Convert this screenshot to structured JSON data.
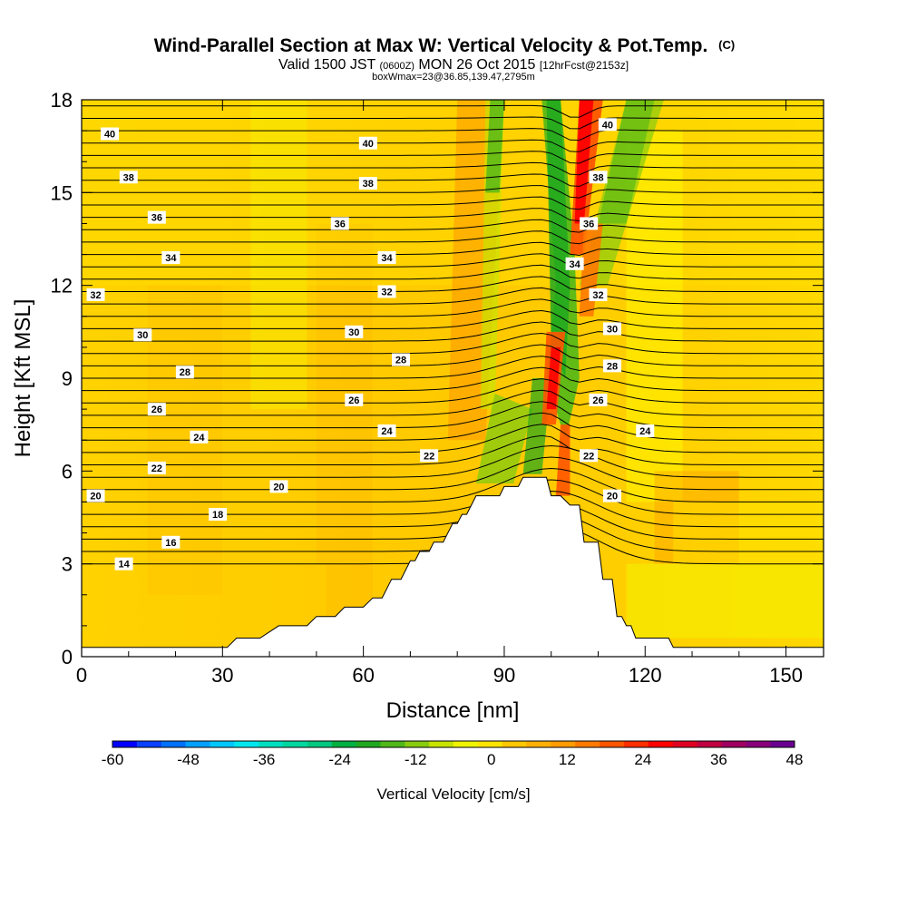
{
  "chart_data": {
    "type": "heatmap",
    "title": "Wind-Parallel Section at Max W: Vertical Velocity & Pot.Temp.",
    "title_mark": "(C)",
    "subtitle_parts": [
      "Valid 1500 JST ",
      "(0600Z)",
      " MON 26 Oct 2015 ",
      "[12hrFcst@2153z]"
    ],
    "subtitle2": "boxWmax=23@36.85,139.47,2795m",
    "xlabel": "Distance [nm]",
    "ylabel": "Height [Kft MSL]",
    "xlim": [
      0,
      158
    ],
    "ylim": [
      0,
      18
    ],
    "x_ticks": [
      0,
      30,
      60,
      90,
      120,
      150
    ],
    "x_tick_labels": [
      "0",
      "30",
      "60",
      "90",
      "120",
      "150"
    ],
    "y_ticks": [
      0,
      3,
      6,
      9,
      12,
      15,
      18
    ],
    "y_tick_labels": [
      "0",
      "3",
      "6",
      "9",
      "12",
      "15",
      "18"
    ],
    "terrain": [
      [
        0,
        0.3
      ],
      [
        31,
        0.3
      ],
      [
        33,
        0.6
      ],
      [
        38,
        0.6
      ],
      [
        42,
        1
      ],
      [
        48,
        1
      ],
      [
        50,
        1.3
      ],
      [
        54,
        1.3
      ],
      [
        56,
        1.6
      ],
      [
        60,
        1.6
      ],
      [
        62,
        1.9
      ],
      [
        64,
        1.9
      ],
      [
        66,
        2.5
      ],
      [
        68,
        2.5
      ],
      [
        70,
        3.1
      ],
      [
        71,
        3.1
      ],
      [
        72,
        3.4
      ],
      [
        74,
        3.4
      ],
      [
        75,
        3.7
      ],
      [
        77,
        3.7
      ],
      [
        79,
        4.3
      ],
      [
        80,
        4.3
      ],
      [
        81,
        4.6
      ],
      [
        82,
        4.6
      ],
      [
        84,
        5.2
      ],
      [
        89,
        5.2
      ],
      [
        90,
        5.5
      ],
      [
        93,
        5.5
      ],
      [
        94,
        5.8
      ],
      [
        99,
        5.8
      ],
      [
        100,
        5.2
      ],
      [
        102,
        5.2
      ],
      [
        104,
        4.9
      ],
      [
        106,
        4.9
      ],
      [
        107,
        3.7
      ],
      [
        110,
        3.7
      ],
      [
        111,
        2.5
      ],
      [
        113,
        2.5
      ],
      [
        114,
        1.3
      ],
      [
        115,
        1.3
      ],
      [
        116,
        1
      ],
      [
        117,
        1
      ],
      [
        118,
        0.6
      ],
      [
        125,
        0.6
      ],
      [
        126,
        0.3
      ],
      [
        153,
        0.3
      ],
      [
        158,
        0.3
      ]
    ],
    "isentrope_labels": [
      {
        "text": "40",
        "x": 6,
        "y": 16.9
      },
      {
        "text": "40",
        "x": 61,
        "y": 16.6
      },
      {
        "text": "40",
        "x": 112,
        "y": 17.2
      },
      {
        "text": "38",
        "x": 10,
        "y": 15.5
      },
      {
        "text": "38",
        "x": 61,
        "y": 15.3
      },
      {
        "text": "38",
        "x": 110,
        "y": 15.5
      },
      {
        "text": "36",
        "x": 16,
        "y": 14.2
      },
      {
        "text": "36",
        "x": 55,
        "y": 14
      },
      {
        "text": "36",
        "x": 108,
        "y": 14
      },
      {
        "text": "34",
        "x": 19,
        "y": 12.9
      },
      {
        "text": "34",
        "x": 65,
        "y": 12.9
      },
      {
        "text": "34",
        "x": 105,
        "y": 12.7
      },
      {
        "text": "32",
        "x": 3,
        "y": 11.7
      },
      {
        "text": "32",
        "x": 65,
        "y": 11.8
      },
      {
        "text": "32",
        "x": 110,
        "y": 11.7
      },
      {
        "text": "30",
        "x": 13,
        "y": 10.4
      },
      {
        "text": "30",
        "x": 58,
        "y": 10.5
      },
      {
        "text": "30",
        "x": 113,
        "y": 10.6
      },
      {
        "text": "28",
        "x": 22,
        "y": 9.2
      },
      {
        "text": "28",
        "x": 68,
        "y": 9.6
      },
      {
        "text": "28",
        "x": 113,
        "y": 9.4
      },
      {
        "text": "26",
        "x": 16,
        "y": 8
      },
      {
        "text": "26",
        "x": 58,
        "y": 8.3
      },
      {
        "text": "26",
        "x": 110,
        "y": 8.3
      },
      {
        "text": "24",
        "x": 25,
        "y": 7.1
      },
      {
        "text": "24",
        "x": 65,
        "y": 7.3
      },
      {
        "text": "24",
        "x": 120,
        "y": 7.3
      },
      {
        "text": "22",
        "x": 16,
        "y": 6.1
      },
      {
        "text": "22",
        "x": 74,
        "y": 6.5
      },
      {
        "text": "22",
        "x": 108,
        "y": 6.5
      },
      {
        "text": "20",
        "x": 3,
        "y": 5.2
      },
      {
        "text": "20",
        "x": 42,
        "y": 5.5
      },
      {
        "text": "20",
        "x": 113,
        "y": 5.2
      },
      {
        "text": "18",
        "x": 29,
        "y": 4.6
      },
      {
        "text": "16",
        "x": 19,
        "y": 3.7
      },
      {
        "text": "14",
        "x": 9,
        "y": 3
      }
    ],
    "colorbar": {
      "label": "Vertical Velocity [cm/s]",
      "min": -60,
      "max": 48,
      "tick_values": [
        -60,
        -48,
        -36,
        -24,
        -12,
        0,
        12,
        24,
        36,
        48
      ],
      "colors": [
        "#0000ff",
        "#0a40ff",
        "#0070ff",
        "#00a0ff",
        "#00c8ff",
        "#00e8ee",
        "#00e0c0",
        "#00d8a0",
        "#00c880",
        "#00b040",
        "#20a820",
        "#50b818",
        "#88cc10",
        "#c8e400",
        "#f0f400",
        "#ffe400",
        "#ffc800",
        "#ffb000",
        "#ff9c00",
        "#ff7a00",
        "#ff5500",
        "#ff2e00",
        "#ff0000",
        "#e00020",
        "#c00040",
        "#a00060",
        "#88007a",
        "#6a0090"
      ]
    }
  }
}
